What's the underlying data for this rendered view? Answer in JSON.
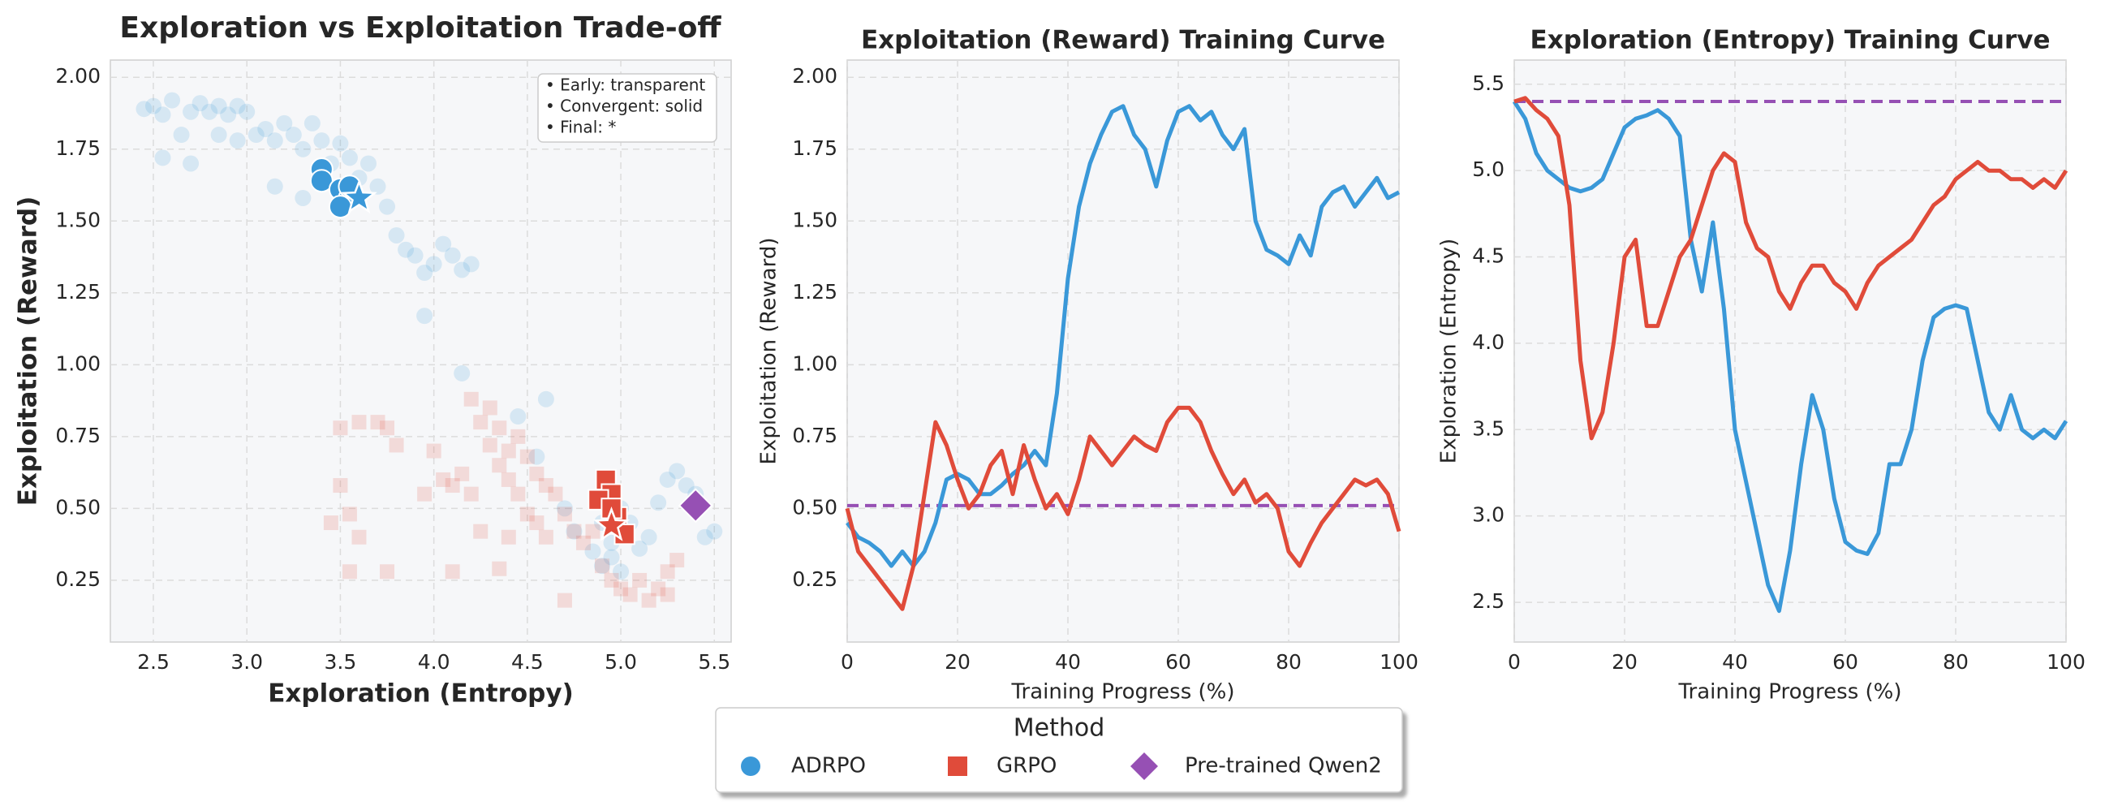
{
  "chart_data": [
    {
      "type": "scatter",
      "title": "Exploration vs Exploitation Trade-off",
      "x_label": "Exploration (Entropy)",
      "y_label": "Exploitation (Reward)",
      "annotations": [
        "• Early: transparent",
        "• Convergent: solid",
        "• Final: *"
      ],
      "legend_title": "Method",
      "xlim": [
        2.27,
        5.59
      ],
      "xticks": [
        2.5,
        {
          "value": 3,
          "label": "3.0"
        },
        3.5,
        {
          "value": 4,
          "label": "4.0"
        },
        4.5,
        {
          "value": 5,
          "label": "5.0"
        },
        5.5
      ],
      "ylim": [
        0.035,
        2.06
      ],
      "yticks": [
        0.25,
        {
          "value": 0.5,
          "label": "0.50"
        },
        0.75,
        {
          "value": 1,
          "label": "1.00"
        },
        1.25,
        {
          "value": 1.5,
          "label": "1.50"
        },
        1.75,
        {
          "value": 2,
          "label": "2.00"
        }
      ],
      "grid": true,
      "series": [
        {
          "name": "ADRPO",
          "color": "#3a98d8",
          "marker": "circle",
          "x": [
            2.45,
            2.5,
            2.55,
            2.6,
            2.65,
            2.7,
            2.75,
            2.8,
            2.85,
            2.9,
            2.95,
            2.85,
            2.95,
            3.0,
            3.05,
            3.1,
            3.15,
            3.2,
            3.25,
            3.3,
            3.35,
            3.4,
            3.45,
            3.5,
            3.55,
            3.6,
            3.65,
            3.7,
            3.75,
            3.8,
            3.85,
            3.9,
            3.95,
            4.0,
            4.05,
            4.1,
            4.15,
            4.2,
            3.95,
            2.55,
            2.7,
            3.15,
            3.3,
            4.15,
            4.45,
            4.55,
            4.6,
            4.7,
            4.75,
            4.85,
            4.9,
            4.95,
            5.0,
            5.05,
            5.1,
            5.15,
            5.25,
            5.3,
            5.35,
            5.4,
            5.45,
            5.5,
            5.2,
            4.9,
            5.0,
            4.95
          ],
          "y": [
            1.89,
            1.9,
            1.87,
            1.92,
            1.8,
            1.88,
            1.91,
            1.88,
            1.9,
            1.87,
            1.9,
            1.8,
            1.78,
            1.88,
            1.8,
            1.82,
            1.78,
            1.84,
            1.8,
            1.75,
            1.84,
            1.78,
            1.7,
            1.77,
            1.72,
            1.65,
            1.7,
            1.62,
            1.55,
            1.45,
            1.4,
            1.38,
            1.32,
            1.35,
            1.42,
            1.38,
            1.33,
            1.35,
            1.17,
            1.72,
            1.7,
            1.62,
            1.58,
            0.97,
            0.82,
            0.68,
            0.88,
            0.5,
            0.42,
            0.35,
            0.3,
            0.38,
            0.28,
            0.45,
            0.36,
            0.4,
            0.6,
            0.63,
            0.58,
            0.55,
            0.4,
            0.42,
            0.52,
            0.45,
            0.5,
            0.33
          ],
          "converged_x": [
            3.4,
            3.4,
            3.5,
            3.55,
            3.5,
            3.55
          ],
          "converged_y": [
            1.68,
            1.64,
            1.61,
            1.58,
            1.55,
            1.62
          ],
          "final_x": [
            3.6
          ],
          "final_y": [
            1.58
          ]
        },
        {
          "name": "GRPO",
          "color": "#e04b3a",
          "marker": "square",
          "x": [
            3.5,
            3.6,
            3.7,
            3.75,
            3.8,
            3.5,
            3.45,
            3.55,
            3.6,
            3.75,
            3.95,
            4.0,
            4.05,
            4.1,
            4.15,
            4.2,
            4.2,
            4.25,
            4.3,
            4.3,
            4.35,
            4.35,
            4.4,
            4.4,
            4.45,
            4.45,
            4.5,
            4.5,
            4.55,
            4.55,
            4.6,
            4.6,
            4.65,
            4.7,
            4.75,
            4.8,
            4.85,
            4.9,
            4.95,
            5.0,
            5.05,
            5.1,
            5.15,
            5.2,
            5.25,
            5.3,
            5.25,
            4.1,
            4.35,
            4.7,
            3.55,
            4.4,
            4.25
          ],
          "y": [
            0.78,
            0.8,
            0.8,
            0.78,
            0.72,
            0.58,
            0.45,
            0.48,
            0.4,
            0.28,
            0.55,
            0.7,
            0.6,
            0.58,
            0.62,
            0.55,
            0.88,
            0.8,
            0.85,
            0.72,
            0.78,
            0.65,
            0.7,
            0.6,
            0.75,
            0.55,
            0.68,
            0.48,
            0.62,
            0.45,
            0.58,
            0.4,
            0.55,
            0.48,
            0.42,
            0.38,
            0.42,
            0.3,
            0.25,
            0.22,
            0.2,
            0.25,
            0.18,
            0.22,
            0.28,
            0.32,
            0.2,
            0.28,
            0.29,
            0.18,
            0.28,
            0.4,
            0.42
          ],
          "converged_x": [
            4.92,
            4.95,
            4.88,
            4.98,
            5.02,
            4.95
          ],
          "converged_y": [
            0.6,
            0.55,
            0.53,
            0.47,
            0.41,
            0.5
          ],
          "final_x": [
            4.95
          ],
          "final_y": [
            0.44
          ]
        },
        {
          "name": "Pre-trained Qwen2",
          "color": "#9650b4",
          "marker": "diamond",
          "x": [
            5.4
          ],
          "y": [
            0.51
          ]
        }
      ]
    },
    {
      "type": "line",
      "title": "Exploitation (Reward) Training Curve",
      "x_label": "Training Progress (%)",
      "y_label": "Exploitation (Reward)",
      "xlim": [
        0,
        100
      ],
      "xticks": [
        0,
        20,
        40,
        60,
        80,
        100
      ],
      "ylim": [
        0.035,
        2.06
      ],
      "yticks": [
        0.25,
        {
          "value": 0.5,
          "label": "0.50"
        },
        0.75,
        {
          "value": 1,
          "label": "1.00"
        },
        1.25,
        {
          "value": 1.5,
          "label": "1.50"
        },
        1.75,
        {
          "value": 2,
          "label": "2.00"
        }
      ],
      "grid": true,
      "baseline": {
        "value": 0.51,
        "color": "#9650b4"
      },
      "x": [
        0,
        2,
        4,
        6,
        8,
        10,
        12,
        14,
        16,
        18,
        20,
        22,
        24,
        26,
        28,
        30,
        32,
        34,
        36,
        38,
        40,
        42,
        44,
        46,
        48,
        50,
        52,
        54,
        56,
        58,
        60,
        62,
        64,
        66,
        68,
        70,
        72,
        74,
        76,
        78,
        80,
        82,
        84,
        86,
        88,
        90,
        92,
        94,
        96,
        98,
        100
      ],
      "series": [
        {
          "name": "ADRPO",
          "color": "#3a98d8",
          "values": [
            0.45,
            0.4,
            0.38,
            0.35,
            0.3,
            0.35,
            0.3,
            0.35,
            0.45,
            0.6,
            0.62,
            0.6,
            0.55,
            0.55,
            0.58,
            0.62,
            0.65,
            0.7,
            0.65,
            0.9,
            1.3,
            1.55,
            1.7,
            1.8,
            1.88,
            1.9,
            1.8,
            1.75,
            1.62,
            1.78,
            1.88,
            1.9,
            1.85,
            1.88,
            1.8,
            1.75,
            1.82,
            1.5,
            1.4,
            1.38,
            1.35,
            1.45,
            1.38,
            1.55,
            1.6,
            1.62,
            1.55,
            1.6,
            1.65,
            1.58,
            1.6
          ]
        },
        {
          "name": "GRPO",
          "color": "#e04b3a",
          "values": [
            0.5,
            0.35,
            0.3,
            0.25,
            0.2,
            0.15,
            0.3,
            0.55,
            0.8,
            0.72,
            0.6,
            0.5,
            0.55,
            0.65,
            0.7,
            0.55,
            0.72,
            0.6,
            0.5,
            0.55,
            0.48,
            0.6,
            0.75,
            0.7,
            0.65,
            0.7,
            0.75,
            0.72,
            0.7,
            0.8,
            0.85,
            0.85,
            0.8,
            0.7,
            0.62,
            0.55,
            0.6,
            0.52,
            0.55,
            0.5,
            0.35,
            0.3,
            0.38,
            0.45,
            0.5,
            0.55,
            0.6,
            0.58,
            0.6,
            0.55,
            0.42
          ]
        }
      ]
    },
    {
      "type": "line",
      "title": "Exploration (Entropy) Training Curve",
      "x_label": "Training Progress (%)",
      "y_label": "Exploration (Entropy)",
      "xlim": [
        0,
        100
      ],
      "xticks": [
        0,
        20,
        40,
        60,
        80,
        100
      ],
      "ylim": [
        2.27,
        5.64
      ],
      "yticks": [
        2.5,
        {
          "value": 3,
          "label": "3.0"
        },
        3.5,
        {
          "value": 4,
          "label": "4.0"
        },
        4.5,
        {
          "value": 5,
          "label": "5.0"
        },
        5.5
      ],
      "grid": true,
      "baseline": {
        "value": 5.4,
        "color": "#9650b4"
      },
      "x": [
        0,
        2,
        4,
        6,
        8,
        10,
        12,
        14,
        16,
        18,
        20,
        22,
        24,
        26,
        28,
        30,
        32,
        34,
        36,
        38,
        40,
        42,
        44,
        46,
        48,
        50,
        52,
        54,
        56,
        58,
        60,
        62,
        64,
        66,
        68,
        70,
        72,
        74,
        76,
        78,
        80,
        82,
        84,
        86,
        88,
        90,
        92,
        94,
        96,
        98,
        100
      ],
      "series": [
        {
          "name": "ADRPO",
          "color": "#3a98d8",
          "values": [
            5.4,
            5.3,
            5.1,
            5.0,
            4.95,
            4.9,
            4.88,
            4.9,
            4.95,
            5.1,
            5.25,
            5.3,
            5.32,
            5.35,
            5.3,
            5.2,
            4.6,
            4.3,
            4.7,
            4.2,
            3.5,
            3.2,
            2.9,
            2.6,
            2.45,
            2.8,
            3.3,
            3.7,
            3.5,
            3.1,
            2.85,
            2.8,
            2.78,
            2.9,
            3.3,
            3.3,
            3.5,
            3.9,
            4.15,
            4.2,
            4.22,
            4.2,
            3.9,
            3.6,
            3.5,
            3.7,
            3.5,
            3.45,
            3.5,
            3.45,
            3.55
          ]
        },
        {
          "name": "GRPO",
          "color": "#e04b3a",
          "values": [
            5.4,
            5.42,
            5.35,
            5.3,
            5.2,
            4.8,
            3.9,
            3.45,
            3.6,
            4.0,
            4.5,
            4.6,
            4.1,
            4.1,
            4.3,
            4.5,
            4.6,
            4.8,
            5.0,
            5.1,
            5.05,
            4.7,
            4.55,
            4.5,
            4.3,
            4.2,
            4.35,
            4.45,
            4.45,
            4.35,
            4.3,
            4.2,
            4.35,
            4.45,
            4.5,
            4.55,
            4.6,
            4.7,
            4.8,
            4.85,
            4.95,
            5.0,
            5.05,
            5.0,
            5.0,
            4.95,
            4.95,
            4.9,
            4.95,
            4.9,
            5.0
          ]
        }
      ]
    }
  ]
}
